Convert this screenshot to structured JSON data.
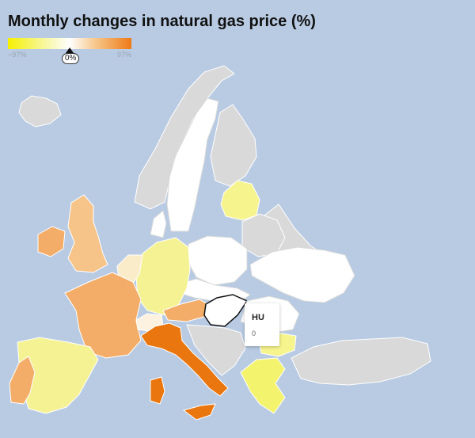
{
  "title": "Monthly changes in natural gas price (%)",
  "legend": {
    "min_label": "−97%",
    "max_label": "97%",
    "marker_label": "0%",
    "min_color": "#f6f000",
    "mid_color": "#ffffff",
    "max_color": "#ee7a16"
  },
  "colors": {
    "sea": "#b8cbe3",
    "no_data": "#d9d9d9"
  },
  "tooltip": {
    "code": "HU",
    "value": "0"
  }
}
